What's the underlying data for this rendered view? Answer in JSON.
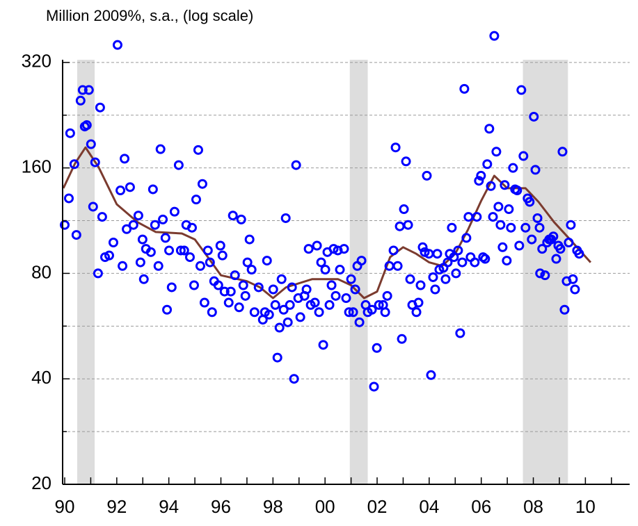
{
  "chart_data": {
    "type": "scatter",
    "title": "Million 2009%, s.a., (log scale)",
    "log_scale_y": true,
    "xlim": [
      1989.92,
      2011.7
    ],
    "ylim": [
      20,
      400
    ],
    "xticks": [
      {
        "value": 1990,
        "label": "90"
      },
      {
        "value": 1992,
        "label": "92"
      },
      {
        "value": 1994,
        "label": "94"
      },
      {
        "value": 1996,
        "label": "96"
      },
      {
        "value": 1998,
        "label": "98"
      },
      {
        "value": 2000,
        "label": "00"
      },
      {
        "value": 2002,
        "label": "02"
      },
      {
        "value": 2004,
        "label": "04"
      },
      {
        "value": 2006,
        "label": "06"
      },
      {
        "value": 2008,
        "label": "08"
      },
      {
        "value": 2010,
        "label": "10"
      }
    ],
    "xminor_ticks": [
      1991,
      1993,
      1995,
      1997,
      1999,
      2001,
      2003,
      2005,
      2007,
      2009,
      2011
    ],
    "yticks": [
      20,
      40,
      80,
      160,
      320
    ],
    "y_minor_grid": [
      28.28,
      56.57,
      113.14,
      226.27
    ],
    "grid": true,
    "shaded_periods": [
      [
        1990.48,
        1991.15
      ],
      [
        2000.95,
        2001.64
      ],
      [
        2007.6,
        2009.33
      ]
    ],
    "shade_color": "#dddddd",
    "color": "#0000ff",
    "x": [
      1990.0,
      1990.16,
      1990.21,
      1990.37,
      1990.45,
      1990.61,
      1990.69,
      1990.77,
      1990.85,
      1990.93,
      1991.01,
      1991.09,
      1991.17,
      1991.28,
      1991.36,
      1991.44,
      1991.55,
      1991.71,
      1991.87,
      1992.03,
      1992.14,
      1992.22,
      1992.3,
      1992.38,
      1992.51,
      1992.64,
      1992.83,
      1992.91,
      1992.99,
      1993.04,
      1993.12,
      1993.31,
      1993.39,
      1993.47,
      1993.6,
      1993.68,
      1993.77,
      1993.87,
      1993.93,
      1994.01,
      1994.11,
      1994.22,
      1994.38,
      1994.46,
      1994.59,
      1994.67,
      1994.81,
      1994.89,
      1994.97,
      1995.05,
      1995.13,
      1995.21,
      1995.29,
      1995.37,
      1995.5,
      1995.58,
      1995.66,
      1995.74,
      1995.9,
      1995.98,
      1996.06,
      1996.14,
      1996.3,
      1996.38,
      1996.46,
      1996.54,
      1996.7,
      1996.78,
      1996.86,
      1996.94,
      1997.02,
      1997.1,
      1997.18,
      1997.29,
      1997.45,
      1997.61,
      1997.69,
      1997.77,
      1997.85,
      1998.01,
      1998.09,
      1998.17,
      1998.25,
      1998.33,
      1998.41,
      1998.49,
      1998.57,
      1998.65,
      1998.73,
      1998.81,
      1998.89,
      1998.97,
      1999.05,
      1999.21,
      1999.29,
      1999.37,
      1999.45,
      1999.61,
      1999.69,
      1999.77,
      1999.85,
      1999.93,
      2000.01,
      2000.09,
      2000.17,
      2000.25,
      2000.33,
      2000.41,
      2000.49,
      2000.57,
      2000.73,
      2000.81,
      2000.92,
      2001.0,
      2001.08,
      2001.16,
      2001.24,
      2001.32,
      2001.4,
      2001.56,
      2001.64,
      2001.8,
      2001.88,
      2001.99,
      2002.07,
      2002.23,
      2002.31,
      2002.39,
      2002.47,
      2002.63,
      2002.71,
      2002.79,
      2002.87,
      2002.95,
      2003.03,
      2003.11,
      2003.19,
      2003.27,
      2003.35,
      2003.51,
      2003.59,
      2003.67,
      2003.75,
      2003.83,
      2003.91,
      2003.99,
      2004.07,
      2004.15,
      2004.23,
      2004.31,
      2004.39,
      2004.55,
      2004.63,
      2004.71,
      2004.79,
      2004.87,
      2004.95,
      2005.03,
      2005.11,
      2005.19,
      2005.27,
      2005.35,
      2005.43,
      2005.51,
      2005.59,
      2005.75,
      2005.83,
      2005.91,
      2005.99,
      2006.07,
      2006.15,
      2006.23,
      2006.31,
      2006.37,
      2006.45,
      2006.5,
      2006.58,
      2006.66,
      2006.74,
      2006.82,
      2006.9,
      2006.98,
      2007.06,
      2007.14,
      2007.22,
      2007.3,
      2007.38,
      2007.46,
      2007.54,
      2007.62,
      2007.7,
      2007.78,
      2007.86,
      2007.94,
      2008.02,
      2008.08,
      2008.16,
      2008.24,
      2008.26,
      2008.34,
      2008.45,
      2008.53,
      2008.61,
      2008.69,
      2008.77,
      2008.88,
      2008.96,
      2009.04,
      2009.12,
      2009.2,
      2009.28,
      2009.36,
      2009.44,
      2009.52,
      2009.6,
      2009.68,
      2009.76
    ],
    "values": [
      110,
      131,
      201,
      164,
      103,
      249,
      267,
      210,
      212,
      267,
      187,
      124,
      166,
      80,
      238,
      116,
      89,
      90,
      98,
      359,
      138,
      84,
      170,
      107,
      141,
      110,
      117,
      86,
      100,
      77,
      94,
      92,
      139,
      110,
      84,
      181,
      114,
      101,
      63,
      93,
      73,
      120,
      163,
      93,
      93,
      110,
      89,
      108,
      74,
      130,
      180,
      84,
      144,
      66,
      93,
      86,
      62,
      76,
      74,
      96,
      90,
      71,
      66,
      71,
      117,
      79,
      64,
      114,
      74,
      69,
      86,
      100,
      82,
      62,
      73,
      59,
      62,
      87,
      61,
      72,
      65,
      46,
      56,
      77,
      63,
      115,
      58,
      65,
      73,
      40,
      163,
      68,
      60,
      69,
      72,
      94,
      65,
      66,
      96,
      62,
      86,
      50,
      82,
      92,
      65,
      74,
      94,
      69,
      93,
      82,
      94,
      68,
      62,
      77,
      62,
      72,
      84,
      58,
      87,
      65,
      62,
      63,
      38,
      49,
      65,
      65,
      62,
      69,
      84,
      93,
      183,
      84,
      109,
      52,
      122,
      167,
      110,
      77,
      65,
      62,
      66,
      74,
      95,
      92,
      152,
      91,
      41,
      78,
      72,
      91,
      82,
      83,
      77,
      86,
      91,
      108,
      89,
      80,
      93,
      54,
      86,
      269,
      101,
      116,
      89,
      86,
      116,
      147,
      152,
      89,
      88,
      164,
      207,
      142,
      116,
      381,
      178,
      124,
      110,
      95,
      143,
      87,
      122,
      108,
      160,
      139,
      138,
      96,
      267,
      173,
      108,
      131,
      128,
      100,
      224,
      158,
      115,
      108,
      80,
      94,
      79,
      98,
      100,
      100,
      102,
      88,
      96,
      94,
      178,
      63,
      76,
      98,
      110,
      77,
      72,
      93,
      91
    ],
    "trend": {
      "color": "#7b3b2f",
      "x": [
        1989.95,
        1990.4,
        1990.8,
        1991.3,
        1992.0,
        1992.8,
        1993.5,
        1994.5,
        1995.0,
        1995.5,
        1996.0,
        1997.0,
        1997.5,
        1998.0,
        1998.5,
        1999.5,
        2000.5,
        2001.0,
        2001.5,
        2002.0,
        2002.5,
        2003.0,
        2003.5,
        2004.0,
        2004.5,
        2005.0,
        2005.5,
        2006.0,
        2006.5,
        2007.0,
        2007.7,
        2008.2,
        2008.8,
        2009.3,
        2010.2
      ],
      "values": [
        140,
        165,
        183,
        161,
        126,
        112,
        105,
        104,
        100,
        89,
        79,
        76,
        73,
        68,
        73,
        77,
        77,
        74,
        68,
        71,
        89,
        95,
        91,
        86,
        84,
        91,
        107,
        129,
        152,
        140,
        140,
        128,
        112,
        102,
        86
      ]
    }
  }
}
